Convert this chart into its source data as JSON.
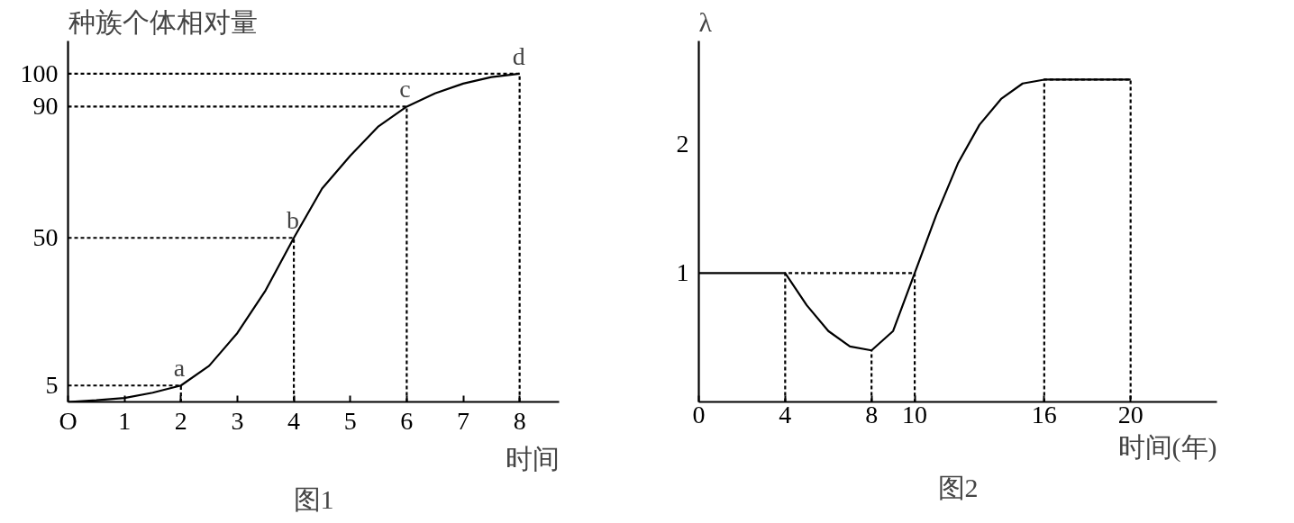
{
  "chart_data": [
    {
      "type": "line",
      "title": "图1",
      "xlabel": "时间",
      "ylabel": "种族个体相对量",
      "xlim": [
        0,
        8.7
      ],
      "ylim": [
        0,
        110
      ],
      "xticks": [
        {
          "value": 0,
          "label": "O"
        },
        1,
        2,
        3,
        4,
        5,
        6,
        7,
        8
      ],
      "yticks": [
        5,
        50,
        90,
        100
      ],
      "grid": false,
      "series": [
        {
          "color": "#000000",
          "line_style": "solid",
          "x": [
            0,
            0.5,
            1,
            1.5,
            2,
            2.5,
            3,
            3.5,
            4,
            4.5,
            5,
            5.5,
            6,
            6.5,
            7,
            7.5,
            8
          ],
          "values": [
            0,
            0.5,
            1.2,
            2.8,
            5,
            11,
            21,
            34,
            50,
            65,
            75,
            84,
            90,
            94,
            97,
            99,
            100
          ]
        },
        {
          "color": "#000000",
          "line_style": "dashed",
          "x": [
            0,
            2,
            2
          ],
          "values": [
            5,
            5,
            0
          ]
        },
        {
          "color": "#000000",
          "line_style": "dashed",
          "x": [
            0,
            4,
            4
          ],
          "values": [
            50,
            50,
            0
          ]
        },
        {
          "color": "#000000",
          "line_style": "dashed",
          "x": [
            0,
            6,
            6
          ],
          "values": [
            90,
            90,
            0
          ]
        },
        {
          "color": "#000000",
          "line_style": "dashed",
          "x": [
            0,
            8,
            8
          ],
          "values": [
            100,
            100,
            0
          ]
        }
      ],
      "annotations": [
        {
          "text": "a",
          "x": 2,
          "y": 5
        },
        {
          "text": "b",
          "x": 4,
          "y": 50
        },
        {
          "text": "c",
          "x": 6,
          "y": 90
        },
        {
          "text": "d",
          "x": 8,
          "y": 100
        }
      ]
    },
    {
      "type": "line",
      "title": "图2",
      "xlabel": "时间(年)",
      "ylabel": "λ",
      "xlim": [
        0,
        24
      ],
      "ylim": [
        0,
        2.8
      ],
      "xticks": [
        0,
        4,
        8,
        10,
        16,
        20
      ],
      "yticks": [
        1,
        2
      ],
      "grid": false,
      "series": [
        {
          "color": "#000000",
          "line_style": "solid",
          "x": [
            0,
            4,
            5,
            6,
            7,
            8,
            9,
            10,
            11,
            12,
            13,
            14,
            15,
            16,
            20
          ],
          "values": [
            1,
            1,
            0.75,
            0.55,
            0.43,
            0.4,
            0.55,
            1,
            1.45,
            1.85,
            2.15,
            2.35,
            2.47,
            2.5,
            2.5
          ]
        },
        {
          "color": "#000000",
          "line_style": "dashed",
          "x": [
            4,
            4,
            10,
            10,
            null,
            8,
            8,
            null,
            16,
            16,
            20,
            20
          ],
          "values": [
            0,
            1,
            1,
            0,
            null,
            0,
            0.4,
            null,
            0,
            2.5,
            2.5,
            0
          ]
        }
      ]
    }
  ]
}
